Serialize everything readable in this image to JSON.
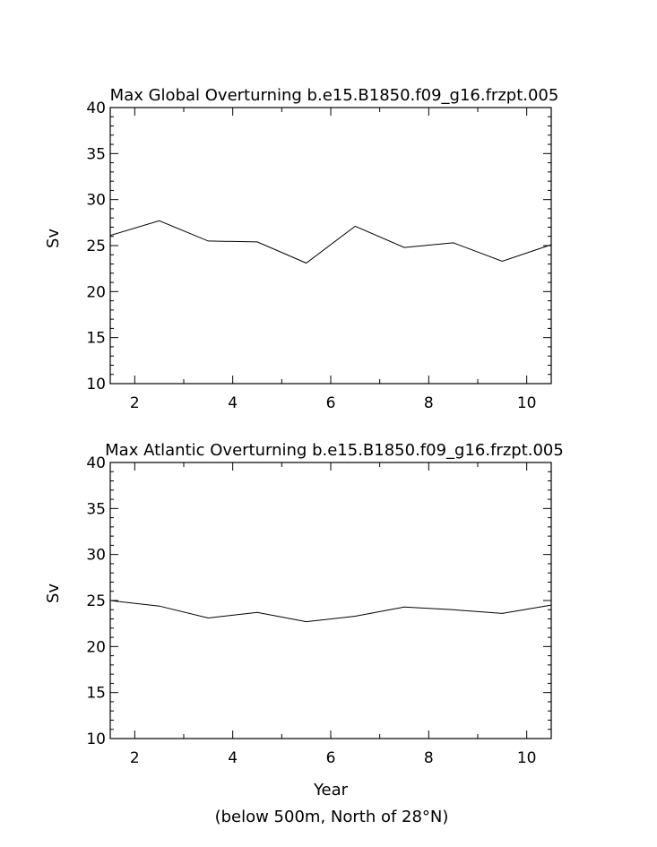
{
  "footer_note": "(below 500m, North of 28°N)",
  "chart_data": [
    {
      "type": "line",
      "title": "Max Global Overturning b.e15.B1850.f09_g16.frzpt.005",
      "xlabel": "",
      "ylabel": "Sv",
      "xlim": [
        1.5,
        10.5
      ],
      "ylim": [
        10,
        40
      ],
      "x_ticks": [
        2,
        4,
        6,
        8,
        10
      ],
      "y_ticks": [
        10,
        15,
        20,
        25,
        30,
        35,
        40
      ],
      "grid": false,
      "series": [
        {
          "x": [
            1.5,
            2.5,
            3.5,
            4.5,
            5.5,
            6.5,
            7.5,
            8.5,
            9.5,
            10.5
          ],
          "values": [
            26.1,
            27.7,
            25.5,
            25.4,
            23.1,
            27.1,
            24.8,
            25.3,
            23.3,
            25.1
          ]
        }
      ]
    },
    {
      "type": "line",
      "title": "Max Atlantic Overturning b.e15.B1850.f09_g16.frzpt.005",
      "xlabel": "Year",
      "ylabel": "Sv",
      "xlim": [
        1.5,
        10.5
      ],
      "ylim": [
        10,
        40
      ],
      "x_ticks": [
        2,
        4,
        6,
        8,
        10
      ],
      "y_ticks": [
        10,
        15,
        20,
        25,
        30,
        35,
        40
      ],
      "grid": false,
      "series": [
        {
          "x": [
            1.5,
            2.5,
            3.5,
            4.5,
            5.5,
            6.5,
            7.5,
            8.5,
            9.5,
            10.5
          ],
          "values": [
            25.0,
            24.4,
            23.1,
            23.7,
            22.7,
            23.3,
            24.3,
            24.0,
            23.6,
            24.5
          ]
        }
      ]
    }
  ]
}
